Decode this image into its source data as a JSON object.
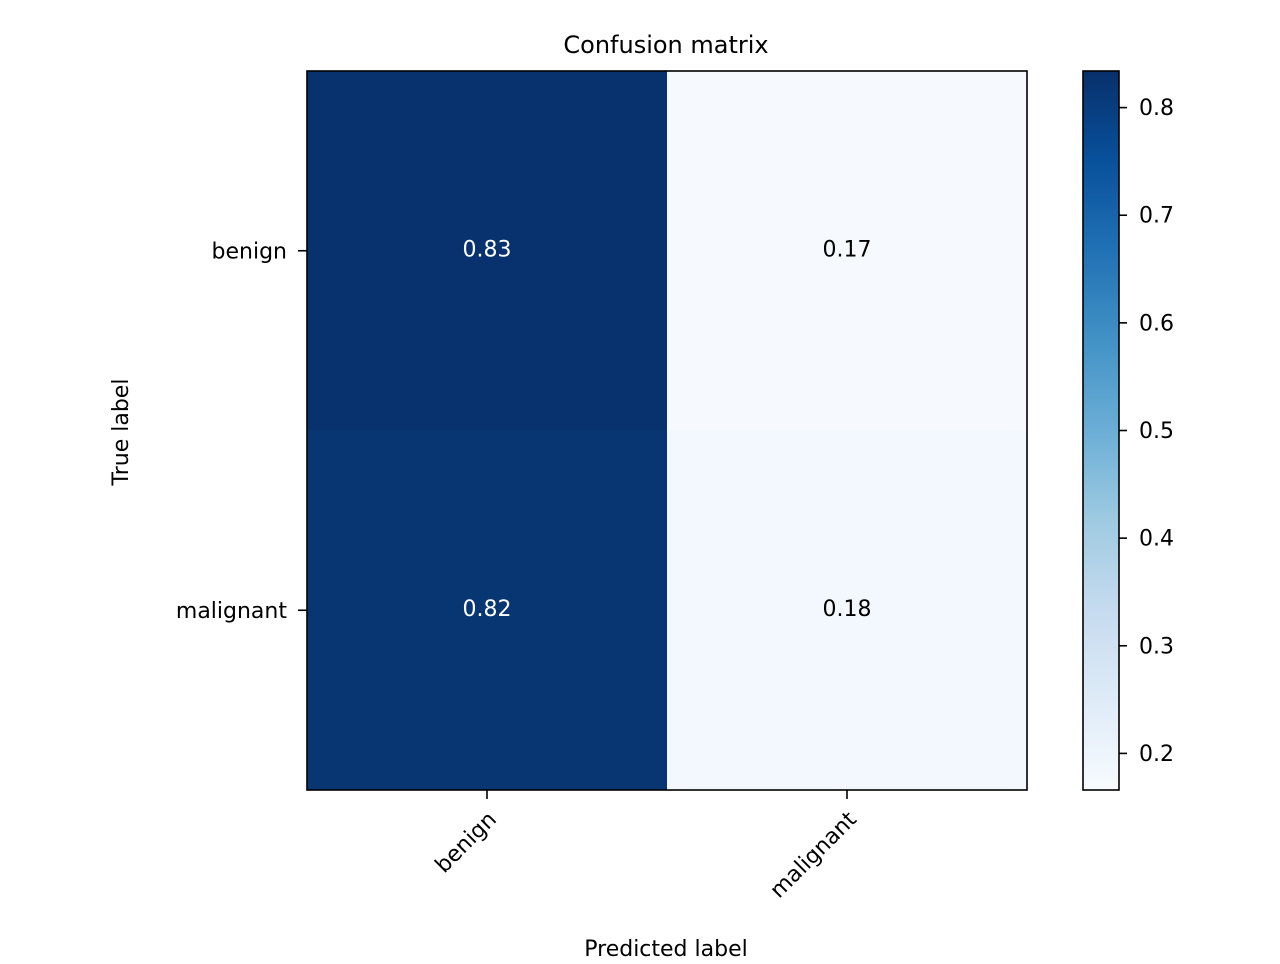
{
  "chart_data": {
    "type": "heatmap",
    "title": "Confusion matrix",
    "xlabel": "Predicted label",
    "ylabel": "True label",
    "x_categories": [
      "benign",
      "malignant"
    ],
    "y_categories": [
      "benign",
      "malignant"
    ],
    "values": [
      [
        0.83,
        0.17
      ],
      [
        0.82,
        0.18
      ]
    ],
    "value_labels": [
      [
        "0.83",
        "0.17"
      ],
      [
        "0.82",
        "0.18"
      ]
    ],
    "colormap": "Blues",
    "colorbar": {
      "range": [
        0.166,
        0.834
      ],
      "ticks": [
        0.2,
        0.3,
        0.4,
        0.5,
        0.6,
        0.7,
        0.8
      ],
      "tick_labels": [
        "0.2",
        "0.3",
        "0.4",
        "0.5",
        "0.6",
        "0.7",
        "0.8"
      ]
    },
    "x_tick_rotation": 45,
    "grid": false,
    "colors": {
      "dark_cell_text": "#ffffff",
      "light_cell_text": "#000000"
    }
  }
}
